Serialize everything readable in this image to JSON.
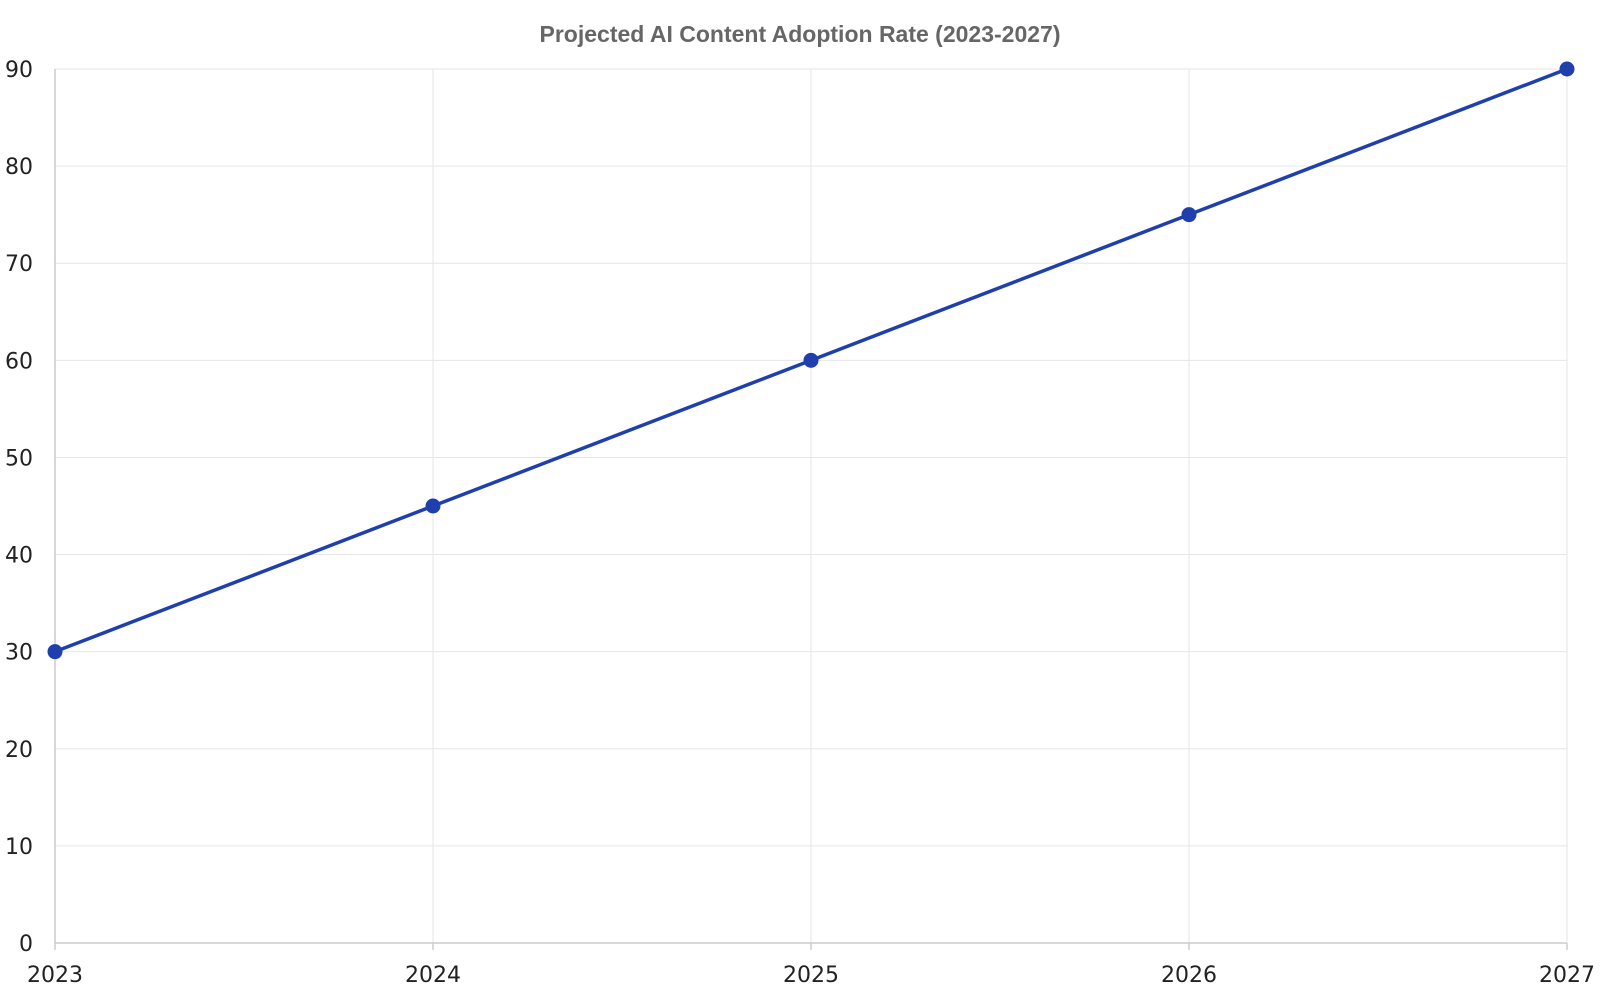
{
  "chart_data": {
    "type": "line",
    "title": "Projected AI Content Adoption Rate (2023-2027)",
    "xlabel": "",
    "ylabel": "",
    "x": [
      "2023",
      "2024",
      "2025",
      "2026",
      "2027"
    ],
    "series": [
      {
        "values": [
          30,
          45,
          60,
          75,
          90
        ],
        "color": "#1f3fad"
      }
    ],
    "ylim": [
      0,
      90
    ],
    "yticks": [
      0,
      10,
      20,
      30,
      40,
      50,
      60,
      70,
      80,
      90
    ],
    "grid": true,
    "legend": "none"
  }
}
